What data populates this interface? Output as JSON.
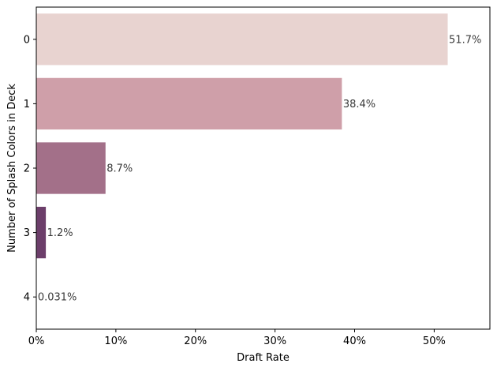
{
  "chart_data": {
    "type": "bar",
    "orientation": "horizontal",
    "title": "",
    "xlabel": "Draft Rate",
    "ylabel": "Number of Splash Colors in Deck",
    "categories": [
      "0",
      "1",
      "2",
      "3",
      "4"
    ],
    "values": [
      51.7,
      38.4,
      8.7,
      1.2,
      0.031
    ],
    "value_labels": [
      "51.7%",
      "38.4%",
      "8.7%",
      "1.2%",
      "0.031%"
    ],
    "bar_colors": [
      "#e8d3d0",
      "#cf9fa9",
      "#a37089",
      "#6c3e6a",
      "#2e1e3b"
    ],
    "xlim": [
      0,
      57
    ],
    "xticks": [
      0,
      10,
      20,
      30,
      40,
      50
    ],
    "xtick_labels": [
      "0%",
      "10%",
      "20%",
      "30%",
      "40%",
      "50%"
    ],
    "grid": false,
    "legend": "none"
  }
}
